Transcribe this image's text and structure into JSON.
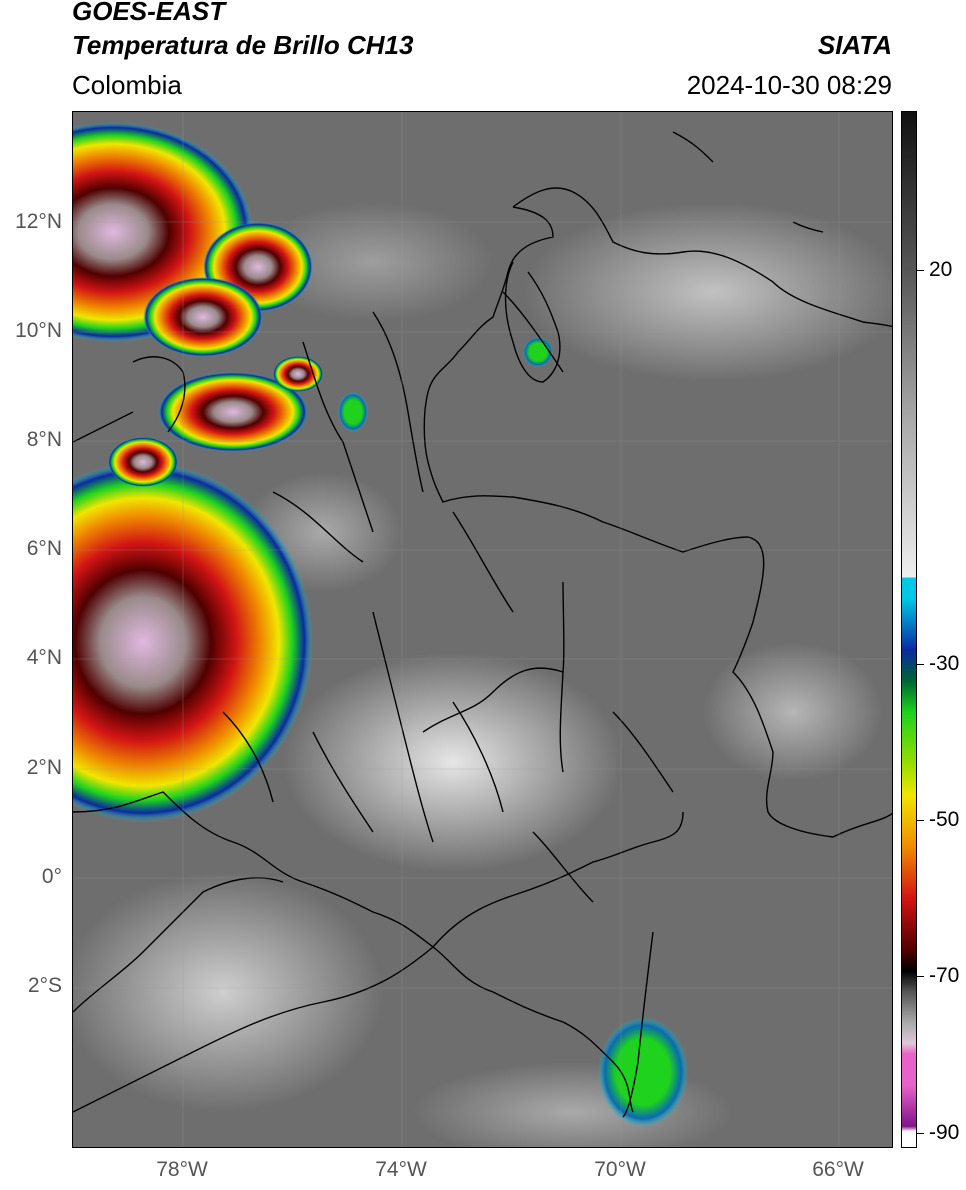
{
  "header": {
    "satellite": "GOES-EAST",
    "product": "Temperatura de Brillo CH13",
    "region": "Colombia",
    "agency": "SIATA",
    "datetime": "2024-10-30 08:29"
  },
  "axes": {
    "lat_labels": [
      "12°N",
      "10°N",
      "8°N",
      "6°N",
      "4°N",
      "2°N",
      "0°",
      "2°S"
    ],
    "lon_labels": [
      "78°W",
      "74°W",
      "70°W",
      "66°W"
    ]
  },
  "colorbar": {
    "labels": [
      "20",
      "-30",
      "-50",
      "-70",
      "-90"
    ],
    "colors": {
      "gray_top": "#111111",
      "cyan": "#00c8e6",
      "blue": "#0a2aa0",
      "green": "#1ed21e",
      "yellow": "#f0e600",
      "orange": "#f08c00",
      "red": "#d21414",
      "dark_red": "#500000",
      "pink": "#e664c8",
      "purple": "#82148c"
    }
  }
}
